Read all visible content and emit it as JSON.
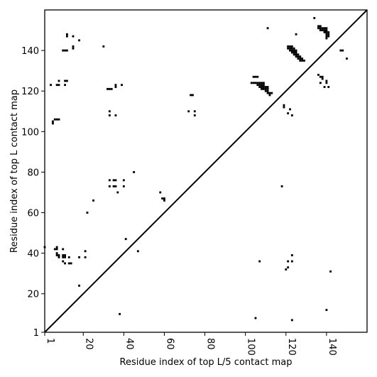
{
  "chart_data": {
    "type": "heatmap",
    "title": "",
    "xlabel": "Residue index of top L/5 contact map",
    "ylabel": "Residue index of top L contact map",
    "xlim": [
      1,
      160
    ],
    "ylim": [
      1,
      160
    ],
    "x_ticks": [
      1,
      20,
      40,
      60,
      80,
      100,
      120,
      140
    ],
    "y_ticks": [
      1,
      20,
      40,
      60,
      80,
      100,
      120,
      140
    ],
    "diagonal": true,
    "cell_color": "#000000",
    "cells": [
      [
        1,
        43
      ],
      [
        5,
        104
      ],
      [
        5,
        105
      ],
      [
        4,
        123
      ],
      [
        7,
        123
      ],
      [
        8,
        123
      ],
      [
        8,
        125
      ],
      [
        11,
        123
      ],
      [
        11,
        125
      ],
      [
        12,
        125
      ],
      [
        10,
        140
      ],
      [
        11,
        140
      ],
      [
        12,
        140
      ],
      [
        12,
        147
      ],
      [
        12,
        148
      ],
      [
        15,
        141
      ],
      [
        15,
        142
      ],
      [
        15,
        147
      ],
      [
        18,
        145
      ],
      [
        30,
        142
      ],
      [
        32,
        121
      ],
      [
        33,
        121
      ],
      [
        34,
        121
      ],
      [
        33,
        110
      ],
      [
        33,
        108
      ],
      [
        36,
        122
      ],
      [
        36,
        123
      ],
      [
        36,
        108
      ],
      [
        39,
        123
      ],
      [
        6,
        106
      ],
      [
        7,
        106
      ],
      [
        8,
        106
      ],
      [
        6,
        42
      ],
      [
        7,
        42
      ],
      [
        7,
        43
      ],
      [
        7,
        39
      ],
      [
        8,
        39
      ],
      [
        7,
        40
      ],
      [
        8,
        38
      ],
      [
        10,
        39
      ],
      [
        10,
        38
      ],
      [
        11,
        38
      ],
      [
        11,
        39
      ],
      [
        10,
        42
      ],
      [
        10,
        36
      ],
      [
        11,
        35
      ],
      [
        13,
        38
      ],
      [
        13,
        35
      ],
      [
        14,
        35
      ],
      [
        18,
        38
      ],
      [
        21,
        41
      ],
      [
        21,
        38
      ],
      [
        18,
        24
      ],
      [
        22,
        60
      ],
      [
        25,
        66
      ],
      [
        33,
        76
      ],
      [
        33,
        73
      ],
      [
        35,
        76
      ],
      [
        36,
        76
      ],
      [
        35,
        73
      ],
      [
        36,
        73
      ],
      [
        37,
        70
      ],
      [
        40,
        76
      ],
      [
        40,
        73
      ],
      [
        45,
        80
      ],
      [
        41,
        47
      ],
      [
        47,
        41
      ],
      [
        38,
        10
      ],
      [
        58,
        70
      ],
      [
        59,
        67
      ],
      [
        60,
        67
      ],
      [
        60,
        66
      ],
      [
        73,
        118
      ],
      [
        74,
        118
      ],
      [
        72,
        110
      ],
      [
        75,
        108
      ],
      [
        75,
        110
      ],
      [
        104,
        127
      ],
      [
        105,
        127
      ],
      [
        106,
        127
      ],
      [
        103,
        124
      ],
      [
        104,
        124
      ],
      [
        105,
        124
      ],
      [
        106,
        124
      ],
      [
        107,
        124
      ],
      [
        108,
        124
      ],
      [
        109,
        124
      ],
      [
        106,
        123
      ],
      [
        107,
        123
      ],
      [
        108,
        123
      ],
      [
        109,
        123
      ],
      [
        107,
        122
      ],
      [
        108,
        122
      ],
      [
        109,
        122
      ],
      [
        110,
        122
      ],
      [
        111,
        122
      ],
      [
        108,
        121
      ],
      [
        109,
        121
      ],
      [
        110,
        121
      ],
      [
        111,
        121
      ],
      [
        110,
        120
      ],
      [
        111,
        120
      ],
      [
        111,
        119
      ],
      [
        112,
        119
      ],
      [
        113,
        119
      ],
      [
        112,
        118
      ],
      [
        111,
        151
      ],
      [
        118,
        73
      ],
      [
        119,
        113
      ],
      [
        119,
        112
      ],
      [
        121,
        109
      ],
      [
        122,
        111
      ],
      [
        123,
        108
      ],
      [
        121,
        142
      ],
      [
        122,
        142
      ],
      [
        123,
        142
      ],
      [
        121,
        141
      ],
      [
        122,
        141
      ],
      [
        123,
        141
      ],
      [
        124,
        141
      ],
      [
        122,
        140
      ],
      [
        123,
        140
      ],
      [
        124,
        140
      ],
      [
        125,
        140
      ],
      [
        123,
        139
      ],
      [
        124,
        139
      ],
      [
        125,
        139
      ],
      [
        124,
        138
      ],
      [
        125,
        138
      ],
      [
        126,
        138
      ],
      [
        125,
        137
      ],
      [
        126,
        137
      ],
      [
        127,
        137
      ],
      [
        126,
        136
      ],
      [
        127,
        136
      ],
      [
        128,
        136
      ],
      [
        127,
        135
      ],
      [
        128,
        135
      ],
      [
        129,
        135
      ],
      [
        125,
        148
      ],
      [
        134,
        156
      ],
      [
        136,
        152
      ],
      [
        137,
        152
      ],
      [
        136,
        151
      ],
      [
        137,
        151
      ],
      [
        138,
        151
      ],
      [
        139,
        151
      ],
      [
        140,
        151
      ],
      [
        137,
        150
      ],
      [
        138,
        150
      ],
      [
        139,
        150
      ],
      [
        140,
        150
      ],
      [
        139,
        149
      ],
      [
        140,
        149
      ],
      [
        141,
        149
      ],
      [
        140,
        148
      ],
      [
        141,
        148
      ],
      [
        140,
        147
      ],
      [
        141,
        147
      ],
      [
        140,
        146
      ],
      [
        136,
        128
      ],
      [
        137,
        127
      ],
      [
        138,
        127
      ],
      [
        138,
        126
      ],
      [
        137,
        124
      ],
      [
        139,
        122
      ],
      [
        140,
        125
      ],
      [
        140,
        124
      ],
      [
        141,
        122
      ],
      [
        147,
        140
      ],
      [
        148,
        140
      ],
      [
        150,
        136
      ],
      [
        107,
        36
      ],
      [
        120,
        32
      ],
      [
        121,
        33
      ],
      [
        121,
        36
      ],
      [
        123,
        39
      ],
      [
        123,
        36
      ],
      [
        142,
        31
      ],
      [
        105,
        8
      ],
      [
        123,
        7
      ],
      [
        140,
        12
      ]
    ]
  }
}
